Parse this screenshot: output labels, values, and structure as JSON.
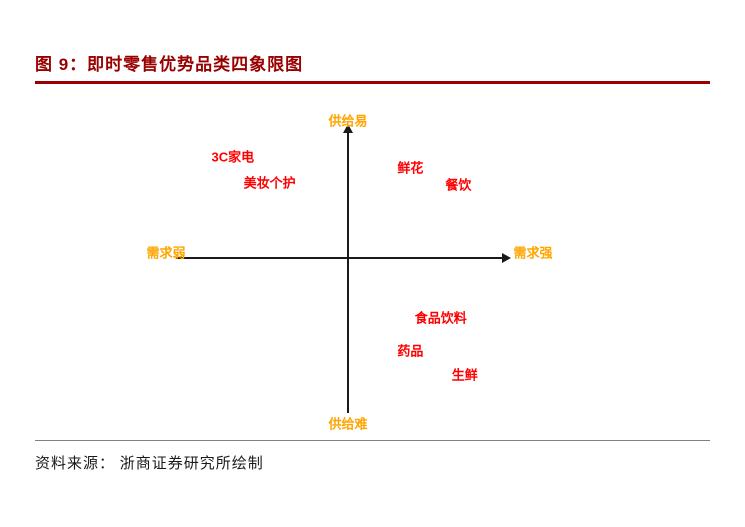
{
  "figure": {
    "title": "图 9：即时零售优势品类四象限图",
    "source": "资料来源： 浙商证券研究所绘制"
  },
  "colors": {
    "title_red": "#990000",
    "rule_red": "#990000",
    "axis_label_orange": "#FFA500",
    "point_red": "#FF0000",
    "axis_line": "#1a1a1a",
    "divider_gray": "#808080"
  },
  "chart_data": {
    "type": "scatter",
    "title": "图 9：即时零售优势品类四象限图",
    "axes": {
      "x_min_label": "需求弱",
      "x_max_label": "需求强",
      "y_max_label": "供给易",
      "y_min_label": "供给难",
      "x_range": [
        -1,
        1
      ],
      "y_range": [
        -1,
        1
      ],
      "grid": false
    },
    "points": [
      {
        "label": "3C家电",
        "x": -0.72,
        "y": 0.8,
        "quadrant": "top-left"
      },
      {
        "label": "美妆个护",
        "x": -0.49,
        "y": 0.59,
        "quadrant": "top-left"
      },
      {
        "label": "鲜花",
        "x": 0.39,
        "y": 0.71,
        "quadrant": "top-right"
      },
      {
        "label": "餐饮",
        "x": 0.69,
        "y": 0.58,
        "quadrant": "top-right"
      },
      {
        "label": "食品饮料",
        "x": 0.58,
        "y": -0.46,
        "quadrant": "bottom-right"
      },
      {
        "label": "药品",
        "x": 0.39,
        "y": -0.72,
        "quadrant": "bottom-right"
      },
      {
        "label": "生鲜",
        "x": 0.73,
        "y": -0.91,
        "quadrant": "bottom-right"
      }
    ]
  }
}
